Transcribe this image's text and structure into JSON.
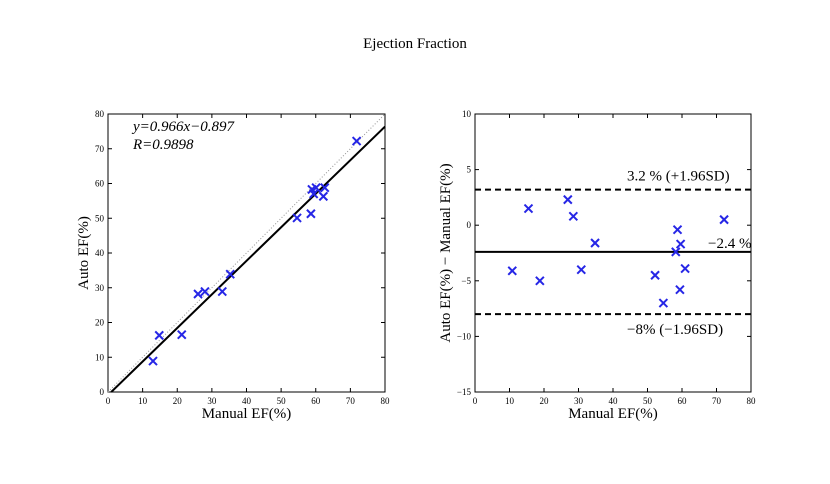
{
  "title": "Ejection Fraction",
  "colors": {
    "marker": "#2626e6",
    "line": "#000000",
    "axis": "#000000"
  },
  "chart_data": [
    {
      "type": "scatter",
      "name": "correlation",
      "xlabel": "Manual EF(%)",
      "ylabel": "Auto EF(%)",
      "xlim": [
        0,
        80
      ],
      "ylim": [
        0,
        80
      ],
      "xticks": [
        "0",
        "10",
        "20",
        "30",
        "40",
        "50",
        "60",
        "70",
        "80"
      ],
      "yticks": [
        "0",
        "10",
        "20",
        "30",
        "40",
        "50",
        "60",
        "70",
        "80"
      ],
      "annotations": [
        "y=0.966x−0.897",
        "R=0.9898"
      ],
      "fit": {
        "slope": 0.966,
        "intercept": -0.897
      },
      "points": [
        {
          "x": 13.0,
          "y": 8.9
        },
        {
          "x": 14.8,
          "y": 16.3
        },
        {
          "x": 21.3,
          "y": 16.5
        },
        {
          "x": 26.0,
          "y": 28.2
        },
        {
          "x": 28.0,
          "y": 28.9
        },
        {
          "x": 33.0,
          "y": 28.9
        },
        {
          "x": 35.3,
          "y": 33.9
        },
        {
          "x": 54.6,
          "y": 50.1
        },
        {
          "x": 58.6,
          "y": 51.3
        },
        {
          "x": 58.9,
          "y": 58.3
        },
        {
          "x": 59.4,
          "y": 57.0
        },
        {
          "x": 60.1,
          "y": 58.8
        },
        {
          "x": 62.2,
          "y": 56.3
        },
        {
          "x": 62.6,
          "y": 58.8
        },
        {
          "x": 71.8,
          "y": 72.2
        }
      ]
    },
    {
      "type": "scatter",
      "name": "bland-altman",
      "xlabel": "Manual EF(%)",
      "ylabel": "Auto EF(%) − Manual EF(%)",
      "xlim": [
        0,
        80
      ],
      "ylim": [
        -15,
        10
      ],
      "xticks": [
        "0",
        "10",
        "20",
        "30",
        "40",
        "50",
        "60",
        "70",
        "80"
      ],
      "yticks": [
        "−15",
        "−10",
        "−5",
        "0",
        "5",
        "10"
      ],
      "lines": [
        {
          "y": 3.2,
          "style": "dashed",
          "label": "3.2 % (+1.96SD)"
        },
        {
          "y": -2.4,
          "style": "solid",
          "label": "−2.4 %"
        },
        {
          "y": -8.0,
          "style": "dashed",
          "label": "−8% (−1.96SD)"
        }
      ],
      "points": [
        {
          "x": 10.8,
          "y": -4.1
        },
        {
          "x": 15.5,
          "y": 1.5
        },
        {
          "x": 18.8,
          "y": -5.0
        },
        {
          "x": 26.9,
          "y": 2.3
        },
        {
          "x": 28.5,
          "y": 0.8
        },
        {
          "x": 30.8,
          "y": -4.0
        },
        {
          "x": 34.8,
          "y": -1.6
        },
        {
          "x": 52.2,
          "y": -4.5
        },
        {
          "x": 54.6,
          "y": -7.0
        },
        {
          "x": 58.2,
          "y": -2.4
        },
        {
          "x": 58.7,
          "y": -0.4
        },
        {
          "x": 59.4,
          "y": -5.8
        },
        {
          "x": 59.6,
          "y": -1.7
        },
        {
          "x": 60.9,
          "y": -3.9
        },
        {
          "x": 72.2,
          "y": 0.5
        }
      ]
    }
  ]
}
